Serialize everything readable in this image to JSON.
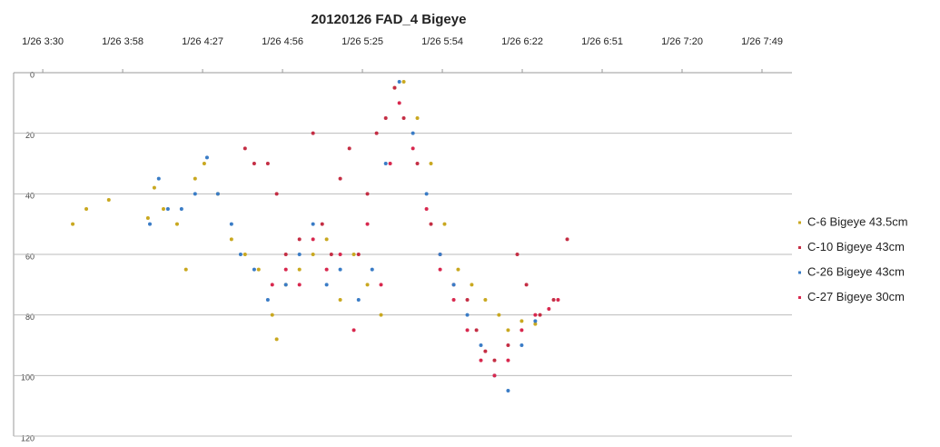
{
  "chart_data": {
    "type": "scatter",
    "title": "20120126  FAD_4  Bigeye",
    "xlim": [
      199.5,
      480
    ],
    "xticks": [
      {
        "value": 210,
        "label": "1/26 3:30"
      },
      {
        "value": 238.8,
        "label": "1/26 3:58"
      },
      {
        "value": 267.6,
        "label": "1/26 4:27"
      },
      {
        "value": 296.4,
        "label": "1/26 4:56"
      },
      {
        "value": 325.2,
        "label": "1/26 5:25"
      },
      {
        "value": 354,
        "label": "1/26 5:54"
      },
      {
        "value": 382.8,
        "label": "1/26 6:22"
      },
      {
        "value": 411.6,
        "label": "1/26 6:51"
      },
      {
        "value": 440.4,
        "label": "1/26 7:20"
      },
      {
        "value": 469.2,
        "label": "1/26 7:49"
      }
    ],
    "ylim": [
      0,
      120
    ],
    "y_reversed": true,
    "yticks": [
      0,
      20,
      40,
      60,
      80,
      100,
      120
    ],
    "grid": true,
    "legend": "right",
    "series": [
      {
        "name": "C-6 Bigeye 43.5cm",
        "color": "#c9a820",
        "x": [
          220.8,
          225.7,
          233.8,
          247.9,
          250.2,
          253.5,
          258.4,
          261.6,
          264.9,
          268.2,
          273.1,
          278,
          282.9,
          287.8,
          292.7,
          294.3,
          297.6,
          302.5,
          307.4,
          312.3,
          317.2,
          322.1,
          327,
          331.9,
          336.8,
          340.1,
          345,
          349.9,
          354.8,
          359.7,
          364.6,
          369.5,
          374.4,
          377.7,
          382.6,
          387.5
        ],
        "values": [
          50,
          45,
          42,
          48,
          38,
          45,
          50,
          65,
          35,
          30,
          40,
          55,
          60,
          65,
          80,
          88,
          70,
          65,
          60,
          55,
          75,
          60,
          70,
          80,
          5,
          3,
          15,
          30,
          50,
          65,
          70,
          75,
          80,
          85,
          82,
          83
        ]
      },
      {
        "name": "C-10 Bigeye 43cm",
        "color": "#c42e44",
        "x": [
          282.9,
          286.2,
          291.1,
          294.3,
          297.6,
          302.5,
          307.4,
          310.7,
          314,
          317.2,
          320.5,
          323.8,
          327,
          330.3,
          333.6,
          336.8,
          340.1,
          345,
          349.9,
          353.2,
          358.1,
          363,
          366.3,
          369.5,
          372.8,
          377.7,
          381,
          384.3,
          389.2,
          394.1,
          399
        ],
        "values": [
          25,
          30,
          30,
          40,
          60,
          55,
          20,
          50,
          60,
          35,
          25,
          60,
          40,
          20,
          15,
          5,
          15,
          30,
          50,
          60,
          70,
          75,
          85,
          92,
          95,
          90,
          60,
          70,
          80,
          75,
          55
        ]
      },
      {
        "name": "C-26 Bigeye 43cm",
        "color": "#3a7cc6",
        "x": [
          248.6,
          251.8,
          255.1,
          260,
          264.9,
          269.2,
          273.1,
          278,
          281.3,
          286.2,
          291.1,
          297.6,
          302.5,
          307.4,
          312.3,
          317.2,
          323.8,
          328.7,
          333.6,
          338.5,
          343.4,
          348.3,
          353.2,
          358.1,
          363,
          367.9,
          372.8,
          377.7,
          382.6,
          387.5
        ],
        "values": [
          50,
          35,
          45,
          45,
          40,
          28,
          40,
          50,
          60,
          65,
          75,
          70,
          60,
          50,
          70,
          65,
          75,
          65,
          30,
          3,
          20,
          40,
          60,
          70,
          80,
          90,
          100,
          105,
          90,
          82
        ]
      },
      {
        "name": "C-27 Bigeye 30cm",
        "color": "#d8284e",
        "x": [
          292.7,
          297.6,
          302.5,
          307.4,
          312.3,
          317.2,
          322.1,
          327,
          331.9,
          335.2,
          338.5,
          343.4,
          348.3,
          353.2,
          358.1,
          363,
          367.9,
          372.8,
          377.7,
          382.6,
          387.5,
          392.4,
          395.7
        ],
        "values": [
          70,
          65,
          70,
          55,
          65,
          60,
          85,
          50,
          70,
          30,
          10,
          25,
          45,
          65,
          75,
          85,
          95,
          100,
          95,
          85,
          80,
          78,
          75
        ]
      }
    ]
  }
}
